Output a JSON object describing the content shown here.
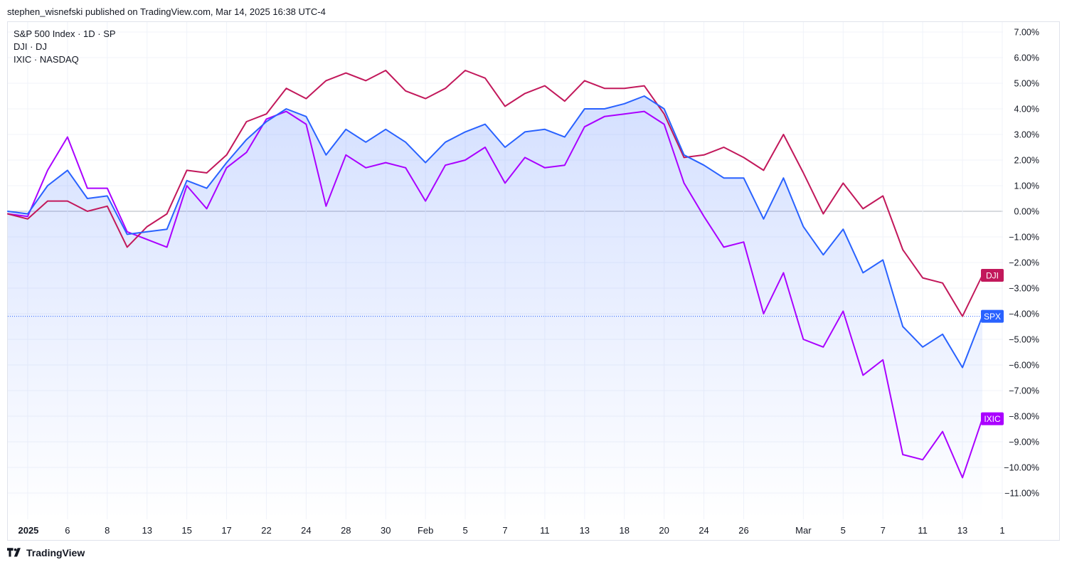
{
  "header": {
    "publish_text": "stephen_wisnefski published on TradingView.com, Mar 14, 2025 16:38 UTC-4"
  },
  "legend": {
    "line1": "S&P 500 Index · 1D · SP",
    "line2": "DJI · DJ",
    "line3": "IXIC · NASDAQ"
  },
  "footer": {
    "brand": "TradingView"
  },
  "colors": {
    "spx": "#2962ff",
    "dji": "#c2185b",
    "ixic": "#aa00ff",
    "zero_line": "#b2b5be",
    "grid": "#f0f3fa"
  },
  "chart_data": {
    "type": "line",
    "title": "S&P 500 Index · 1D · SP",
    "xlabel": "",
    "ylabel": "",
    "ylim": [
      -12,
      7.5
    ],
    "y_ticks": [
      7,
      6,
      5,
      4,
      3,
      2,
      1,
      0,
      -1,
      -2,
      -3,
      -4,
      -5,
      -6,
      -7,
      -8,
      -9,
      -10,
      -11
    ],
    "y_tick_labels": [
      "7.00%",
      "6.00%",
      "5.00%",
      "4.00%",
      "3.00%",
      "2.00%",
      "1.00%",
      "0.00%",
      "−1.00%",
      "−2.00%",
      "−3.00%",
      "−4.00%",
      "−5.00%",
      "−6.00%",
      "−7.00%",
      "−8.00%",
      "−9.00%",
      "−10.00%",
      "−11.00%"
    ],
    "x_ticks": [
      {
        "label": "2025",
        "index": 1,
        "bold": true
      },
      {
        "label": "6",
        "index": 3
      },
      {
        "label": "8",
        "index": 5
      },
      {
        "label": "13",
        "index": 7
      },
      {
        "label": "15",
        "index": 9
      },
      {
        "label": "17",
        "index": 11
      },
      {
        "label": "22",
        "index": 13
      },
      {
        "label": "24",
        "index": 15
      },
      {
        "label": "28",
        "index": 17
      },
      {
        "label": "30",
        "index": 19
      },
      {
        "label": "Feb",
        "index": 21
      },
      {
        "label": "5",
        "index": 23
      },
      {
        "label": "7",
        "index": 25
      },
      {
        "label": "11",
        "index": 27
      },
      {
        "label": "13",
        "index": 29
      },
      {
        "label": "18",
        "index": 31
      },
      {
        "label": "20",
        "index": 33
      },
      {
        "label": "24",
        "index": 35
      },
      {
        "label": "26",
        "index": 37
      },
      {
        "label": "Mar",
        "index": 40
      },
      {
        "label": "5",
        "index": 42
      },
      {
        "label": "7",
        "index": 44
      },
      {
        "label": "11",
        "index": 46
      },
      {
        "label": "13",
        "index": 48
      },
      {
        "label": "1",
        "index": 50
      }
    ],
    "x_count": 51,
    "series": [
      {
        "name": "SPX",
        "key": "spx",
        "label": "SPX",
        "last": -4.1,
        "filled": true,
        "values": [
          0.0,
          -0.1,
          1.0,
          1.6,
          0.5,
          0.6,
          -0.9,
          -0.8,
          -0.7,
          1.2,
          0.9,
          1.9,
          2.8,
          3.5,
          4.0,
          3.7,
          2.2,
          3.2,
          2.7,
          3.2,
          2.7,
          1.9,
          2.7,
          3.1,
          3.4,
          2.5,
          3.1,
          3.2,
          2.9,
          4.0,
          4.0,
          4.2,
          4.5,
          4.0,
          2.2,
          1.8,
          1.3,
          1.3,
          -0.3,
          1.3,
          -0.6,
          -1.7,
          -0.7,
          -2.4,
          -1.9,
          -4.5,
          -5.3,
          -4.8,
          -6.1,
          -4.1
        ]
      },
      {
        "name": "DJI",
        "key": "dji",
        "label": "DJI",
        "last": -2.5,
        "filled": false,
        "values": [
          -0.1,
          -0.3,
          0.4,
          0.4,
          0.0,
          0.2,
          -1.4,
          -0.6,
          -0.1,
          1.6,
          1.5,
          2.2,
          3.5,
          3.8,
          4.8,
          4.4,
          5.1,
          5.4,
          5.1,
          5.5,
          4.7,
          4.4,
          4.8,
          5.5,
          5.2,
          4.1,
          4.6,
          4.9,
          4.3,
          5.1,
          4.8,
          4.8,
          4.9,
          3.8,
          2.1,
          2.2,
          2.5,
          2.1,
          1.6,
          3.0,
          1.5,
          -0.1,
          1.1,
          0.1,
          0.6,
          -1.5,
          -2.6,
          -2.8,
          -4.1,
          -2.5
        ]
      },
      {
        "name": "IXIC",
        "key": "ixic",
        "label": "IXIC",
        "last": -8.1,
        "filled": false,
        "values": [
          -0.1,
          -0.2,
          1.6,
          2.9,
          0.9,
          0.9,
          -0.8,
          -1.1,
          -1.4,
          1.0,
          0.1,
          1.7,
          2.3,
          3.6,
          3.9,
          3.4,
          0.2,
          2.2,
          1.7,
          1.9,
          1.7,
          0.4,
          1.8,
          2.0,
          2.5,
          1.1,
          2.1,
          1.7,
          1.8,
          3.3,
          3.7,
          3.8,
          3.9,
          3.4,
          1.1,
          -0.2,
          -1.4,
          -1.2,
          -4.0,
          -2.4,
          -5.0,
          -5.3,
          -3.9,
          -6.4,
          -5.8,
          -9.5,
          -9.7,
          -8.6,
          -10.4,
          -8.1
        ]
      }
    ]
  }
}
